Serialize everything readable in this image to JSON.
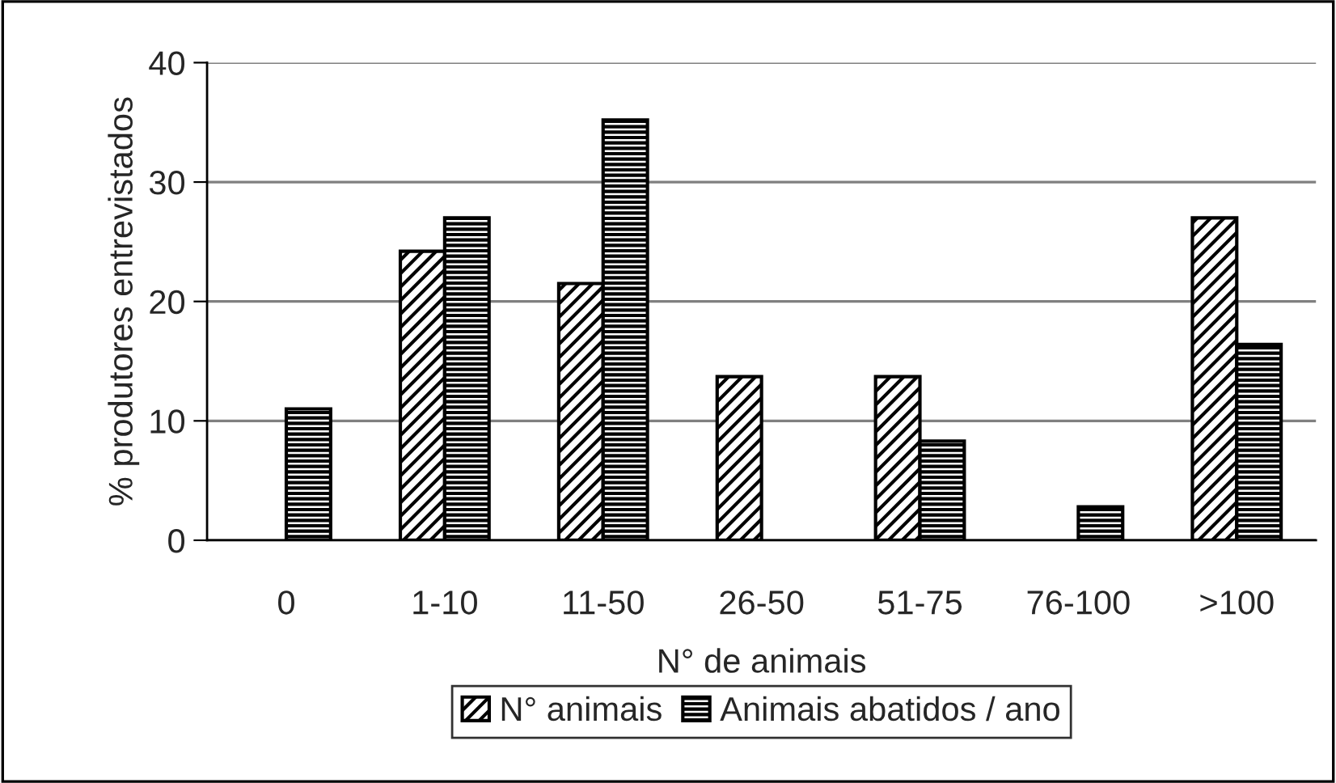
{
  "chart_data": {
    "type": "bar",
    "xlabel": "N° de animais",
    "ylabel": "% produtores entrevistados",
    "categories": [
      "0",
      "1-10",
      "11-50",
      "26-50",
      "51-75",
      "76-100",
      ">100"
    ],
    "series": [
      {
        "name": "N° animais",
        "color": "#000000",
        "values": [
          null,
          24.2,
          21.5,
          13.7,
          13.7,
          null,
          27.0
        ]
      },
      {
        "name": "Animais abatidos / ano",
        "color": "#000000",
        "values": [
          11.0,
          27.0,
          35.2,
          null,
          8.3,
          2.8,
          16.4
        ]
      }
    ],
    "ylim": [
      0,
      40
    ],
    "yticks": [
      0,
      10,
      20,
      30,
      40
    ],
    "grid": "y",
    "legend": "bottom"
  }
}
